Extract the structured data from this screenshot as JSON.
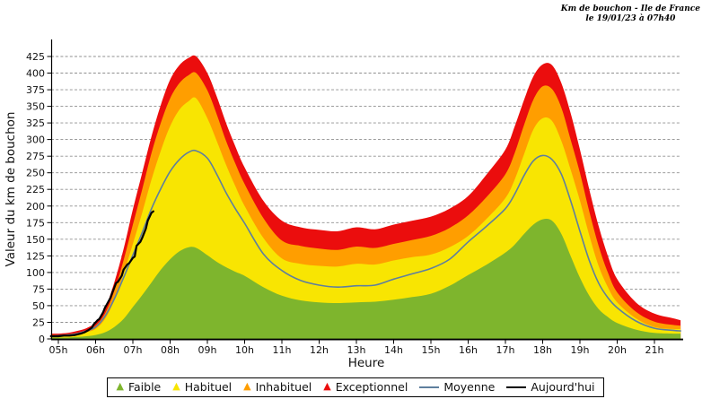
{
  "title": {
    "line1": "Km de bouchon - Ile de France",
    "line2": "le 19/01/23 à 07h40"
  },
  "chart_data": {
    "type": "area",
    "title": "Km de bouchon - Ile de France, le 19/01/23 à 07h40",
    "xlabel": "Heure",
    "ylabel": "Valeur du  km de bouchon",
    "xlim": [
      4.8,
      21.7
    ],
    "ylim": [
      0,
      445
    ],
    "grid": "horizontal-dashed",
    "legend_position": "bottom-center",
    "y_ticks": [
      0,
      25,
      50,
      75,
      100,
      125,
      150,
      175,
      200,
      225,
      250,
      275,
      300,
      325,
      350,
      375,
      400,
      425
    ],
    "x_tick_hours": [
      5,
      6,
      7,
      8,
      9,
      10,
      11,
      12,
      13,
      14,
      15,
      16,
      17,
      18,
      19,
      20,
      21
    ],
    "x_tick_labels": [
      "05h",
      "06h",
      "07h",
      "08h",
      "09h",
      "10h",
      "11h",
      "12h",
      "13h",
      "14h",
      "15h",
      "16h",
      "17h",
      "18h",
      "19h",
      "20h",
      "21h"
    ],
    "x": [
      4.8,
      5.0,
      5.25,
      5.5,
      5.75,
      6.0,
      6.25,
      6.5,
      6.75,
      7.0,
      7.25,
      7.5,
      7.75,
      8.0,
      8.25,
      8.5,
      8.7,
      9.0,
      9.25,
      9.5,
      9.75,
      10.0,
      10.5,
      11.0,
      11.5,
      12.0,
      12.5,
      13.0,
      13.5,
      14.0,
      14.5,
      15.0,
      15.5,
      16.0,
      16.5,
      17.0,
      17.25,
      17.5,
      17.75,
      18.0,
      18.25,
      18.5,
      18.75,
      19.0,
      19.25,
      19.5,
      19.75,
      20.0,
      20.5,
      21.0,
      21.5,
      21.7
    ],
    "series": [
      {
        "id": "faible",
        "label": "Faible",
        "kind": "area",
        "color": "#7EB52D",
        "values": [
          2,
          2,
          2,
          3,
          4,
          6,
          10,
          18,
          30,
          48,
          66,
          85,
          104,
          120,
          132,
          138,
          137,
          126,
          116,
          108,
          101,
          95,
          78,
          65,
          58,
          55,
          54,
          55,
          56,
          59,
          63,
          68,
          80,
          96,
          112,
          130,
          142,
          158,
          172,
          180,
          178,
          158,
          125,
          92,
          65,
          45,
          33,
          24,
          14,
          9,
          8,
          8
        ]
      },
      {
        "id": "habituel",
        "label": "Habituel",
        "kind": "area",
        "color": "#F8E502",
        "values": [
          4,
          4,
          5,
          7,
          10,
          15,
          30,
          58,
          98,
          143,
          190,
          240,
          283,
          320,
          345,
          358,
          362,
          332,
          298,
          262,
          230,
          200,
          152,
          121,
          113,
          110,
          109,
          113,
          112,
          118,
          123,
          127,
          138,
          155,
          181,
          212,
          240,
          278,
          315,
          332,
          328,
          298,
          255,
          208,
          156,
          110,
          78,
          55,
          31,
          18,
          15,
          15
        ]
      },
      {
        "id": "inhabituel",
        "label": "Inhabituel",
        "kind": "area",
        "color": "#FF9E00",
        "values": [
          6,
          6,
          7,
          9,
          13,
          20,
          38,
          72,
          118,
          172,
          225,
          280,
          325,
          362,
          385,
          397,
          400,
          374,
          338,
          298,
          264,
          233,
          182,
          148,
          140,
          136,
          134,
          139,
          137,
          143,
          149,
          155,
          167,
          186,
          214,
          248,
          280,
          322,
          360,
          380,
          376,
          348,
          300,
          250,
          192,
          140,
          100,
          70,
          41,
          26,
          21,
          20
        ]
      },
      {
        "id": "exceptionnel",
        "label": "Exceptionnel",
        "kind": "area",
        "color": "#EB0D0D",
        "values": [
          8,
          8,
          9,
          12,
          16,
          25,
          45,
          85,
          135,
          195,
          250,
          305,
          352,
          390,
          412,
          423,
          425,
          400,
          365,
          325,
          290,
          258,
          208,
          178,
          168,
          164,
          162,
          168,
          165,
          172,
          178,
          184,
          196,
          215,
          248,
          285,
          320,
          360,
          395,
          413,
          412,
          385,
          340,
          285,
          225,
          170,
          125,
          90,
          55,
          38,
          31,
          28
        ]
      },
      {
        "id": "moyenne",
        "label": "Moyenne",
        "kind": "line",
        "color": "#5F7F9E",
        "width": 1.6,
        "smooth": true,
        "values": [
          4,
          5,
          6,
          8,
          12,
          18,
          34,
          60,
          92,
          126,
          160,
          196,
          226,
          252,
          270,
          281,
          283,
          272,
          248,
          220,
          196,
          174,
          128,
          103,
          88,
          81,
          78,
          80,
          81,
          90,
          98,
          106,
          120,
          146,
          170,
          196,
          218,
          246,
          268,
          276,
          270,
          248,
          208,
          162,
          118,
          84,
          62,
          47,
          27,
          16,
          13,
          12
        ]
      },
      {
        "id": "aujourdhui",
        "label": "Aujourd'hui",
        "kind": "line",
        "color": "#000000",
        "width": 2.2,
        "smooth": false,
        "x": [
          4.8,
          5.0,
          5.15,
          5.3,
          5.45,
          5.6,
          5.7,
          5.8,
          5.9,
          5.95,
          6.05,
          6.1,
          6.2,
          6.25,
          6.3,
          6.4,
          6.45,
          6.55,
          6.6,
          6.7,
          6.75,
          6.85,
          6.9,
          7.0,
          7.05,
          7.1,
          7.2,
          7.25,
          7.35,
          7.4,
          7.5,
          7.55
        ],
        "values": [
          4,
          4,
          5,
          5,
          6,
          8,
          10,
          13,
          17,
          22,
          28,
          30,
          40,
          47,
          52,
          62,
          70,
          84,
          86,
          95,
          104,
          112,
          114,
          122,
          124,
          140,
          146,
          152,
          166,
          178,
          190,
          192
        ]
      }
    ]
  }
}
